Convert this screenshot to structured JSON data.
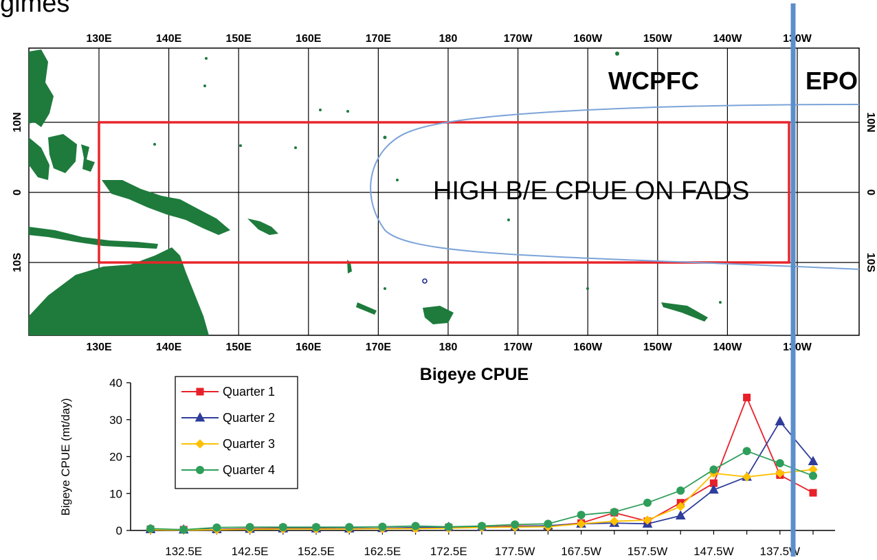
{
  "page": {
    "corner_title": "gimes"
  },
  "map": {
    "top_ticks": [
      "130E",
      "140E",
      "150E",
      "160E",
      "170E",
      "180",
      "170W",
      "160W",
      "150W",
      "140W",
      "130W"
    ],
    "bottom_ticks": [
      "130E",
      "140E",
      "150E",
      "160E",
      "170E",
      "180",
      "170W",
      "160W",
      "150W",
      "140W",
      "130W"
    ],
    "left_ticks": [
      "10N",
      "0",
      "10S"
    ],
    "right_ticks": [
      "10N",
      "0",
      "10S"
    ],
    "region_left": "WCPFC",
    "region_right": "EPO",
    "annotation": "HIGH B/E CPUE ON FADS",
    "colors": {
      "land": "#1e7b3c",
      "box": "#e8252a",
      "contour": "#7ba3d8",
      "boundary": "#5b8fcb"
    }
  },
  "chart_data": {
    "type": "line",
    "title": "Bigeye CPUE",
    "xlabel": "",
    "ylabel": "Bigeye CPUE (mt/day)",
    "ylim": [
      0,
      40
    ],
    "yticks": [
      0,
      10,
      20,
      30,
      40
    ],
    "x_tick_labels": [
      "132.5E",
      "142.5E",
      "152.5E",
      "162.5E",
      "172.5E",
      "177.5W",
      "167.5W",
      "157.5W",
      "147.5W",
      "137.5W"
    ],
    "x": [
      "127.5E",
      "132.5E",
      "137.5E",
      "142.5E",
      "147.5E",
      "152.5E",
      "157.5E",
      "162.5E",
      "167.5E",
      "172.5E",
      "177.5E",
      "177.5W",
      "172.5W",
      "167.5W",
      "162.5W",
      "157.5W",
      "152.5W",
      "147.5W",
      "142.5W",
      "137.5W",
      "132.5W"
    ],
    "series": [
      {
        "name": "Quarter 1",
        "color": "#e8202a",
        "marker": "square",
        "values": [
          0.3,
          0.2,
          0.3,
          0.5,
          0.6,
          0.6,
          0.5,
          0.6,
          0.7,
          0.8,
          0.9,
          1.2,
          1.2,
          2.0,
          4.8,
          2.5,
          7.5,
          12.8,
          36.0,
          15.0,
          10.2
        ]
      },
      {
        "name": "Quarter 2",
        "color": "#2e3c9a",
        "marker": "triangle",
        "values": [
          0.3,
          0.2,
          0.3,
          0.4,
          0.5,
          0.5,
          0.5,
          0.6,
          0.8,
          0.9,
          0.9,
          1.0,
          1.3,
          1.8,
          2.0,
          1.8,
          4.0,
          11.0,
          14.5,
          29.5,
          18.7
        ]
      },
      {
        "name": "Quarter 3",
        "color": "#ffc000",
        "marker": "diamond",
        "values": [
          0.2,
          0.1,
          0.2,
          0.3,
          0.4,
          0.4,
          0.4,
          0.5,
          0.5,
          0.6,
          0.8,
          0.9,
          1.0,
          1.8,
          2.5,
          2.8,
          6.5,
          15.5,
          14.5,
          15.5,
          16.5
        ]
      },
      {
        "name": "Quarter 4",
        "color": "#2e9e5a",
        "marker": "circle",
        "values": [
          0.5,
          0.2,
          0.8,
          0.9,
          0.9,
          0.9,
          0.9,
          1.0,
          1.2,
          1.0,
          1.2,
          1.6,
          1.8,
          4.2,
          5.0,
          7.5,
          10.8,
          16.5,
          21.5,
          18.2,
          14.8
        ]
      }
    ]
  }
}
